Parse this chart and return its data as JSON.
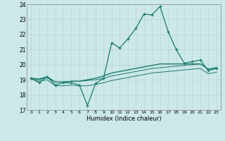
{
  "xlabel": "Humidex (Indice chaleur)",
  "x_values": [
    0,
    1,
    2,
    3,
    4,
    5,
    6,
    7,
    8,
    9,
    10,
    11,
    12,
    13,
    14,
    15,
    16,
    17,
    18,
    19,
    20,
    21,
    22,
    23
  ],
  "line1": [
    19.1,
    18.8,
    19.2,
    18.65,
    18.8,
    18.8,
    18.65,
    17.3,
    18.75,
    19.1,
    21.45,
    21.1,
    21.7,
    22.4,
    23.35,
    23.3,
    23.85,
    22.2,
    21.0,
    20.1,
    20.2,
    20.3,
    19.6,
    19.75
  ],
  "line2": [
    19.1,
    19.05,
    19.2,
    18.85,
    18.85,
    18.9,
    18.9,
    19.0,
    19.1,
    19.25,
    19.45,
    19.55,
    19.65,
    19.75,
    19.85,
    19.95,
    20.05,
    20.05,
    20.05,
    20.05,
    20.05,
    20.05,
    19.7,
    19.8
  ],
  "line3": [
    19.1,
    19.0,
    19.15,
    18.85,
    18.85,
    18.9,
    18.9,
    18.95,
    19.0,
    19.1,
    19.25,
    19.35,
    19.45,
    19.55,
    19.65,
    19.75,
    19.8,
    19.85,
    19.9,
    19.95,
    20.0,
    20.05,
    19.7,
    19.8
  ],
  "line4": [
    19.05,
    18.9,
    19.0,
    18.6,
    18.6,
    18.65,
    18.6,
    18.6,
    18.7,
    18.8,
    18.95,
    19.05,
    19.15,
    19.25,
    19.35,
    19.45,
    19.5,
    19.55,
    19.6,
    19.65,
    19.7,
    19.75,
    19.4,
    19.5
  ],
  "ylim": [
    17,
    24
  ],
  "xlim_min": -0.5,
  "xlim_max": 23.5,
  "yticks": [
    17,
    18,
    19,
    20,
    21,
    22,
    23,
    24
  ],
  "xticks": [
    0,
    1,
    2,
    3,
    4,
    5,
    6,
    7,
    8,
    9,
    10,
    11,
    12,
    13,
    14,
    15,
    16,
    17,
    18,
    19,
    20,
    21,
    22,
    23
  ],
  "color_main": "#1a7a6e",
  "bg_color": "#cce8e8",
  "grid_color": "#b8d4d4",
  "spine_color": "#888888"
}
